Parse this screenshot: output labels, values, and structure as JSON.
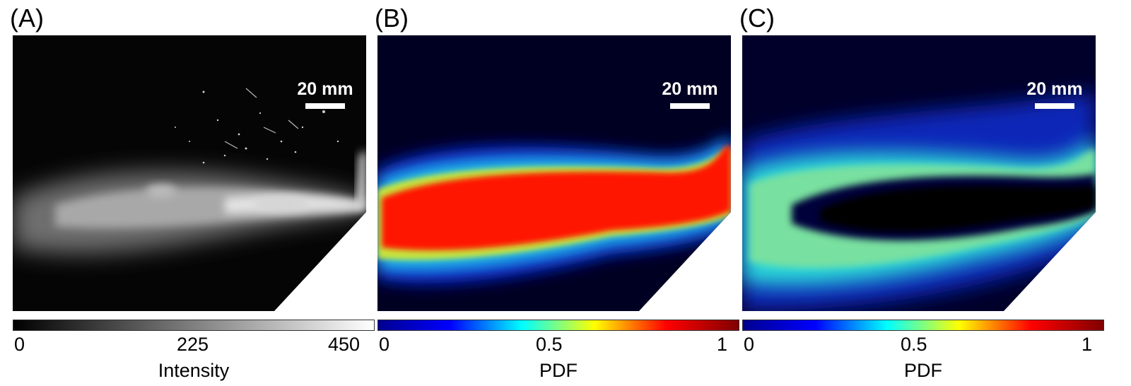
{
  "panels": [
    {
      "label": "(A)",
      "scale_bar": "20 mm",
      "colorbar": {
        "title": "Intensity",
        "ticks": [
          "0",
          "225",
          "450"
        ],
        "colormap": "gray",
        "stops": [
          "#000000",
          "#ffffff"
        ]
      }
    },
    {
      "label": "(B)",
      "scale_bar": "20 mm",
      "colorbar": {
        "title": "PDF",
        "ticks": [
          "0",
          "0.5",
          "1"
        ],
        "colormap": "jet",
        "stops": [
          "#00008f",
          "#0000ff",
          "#00ffff",
          "#ffff00",
          "#ff0000",
          "#800000"
        ]
      }
    },
    {
      "label": "(C)",
      "scale_bar": "20 mm",
      "colorbar": {
        "title": "PDF",
        "ticks": [
          "0",
          "0.5",
          "1"
        ],
        "colormap": "jet",
        "stops": [
          "#00008f",
          "#0000ff",
          "#00ffff",
          "#ffff00",
          "#ff0000",
          "#800000"
        ]
      }
    }
  ]
}
